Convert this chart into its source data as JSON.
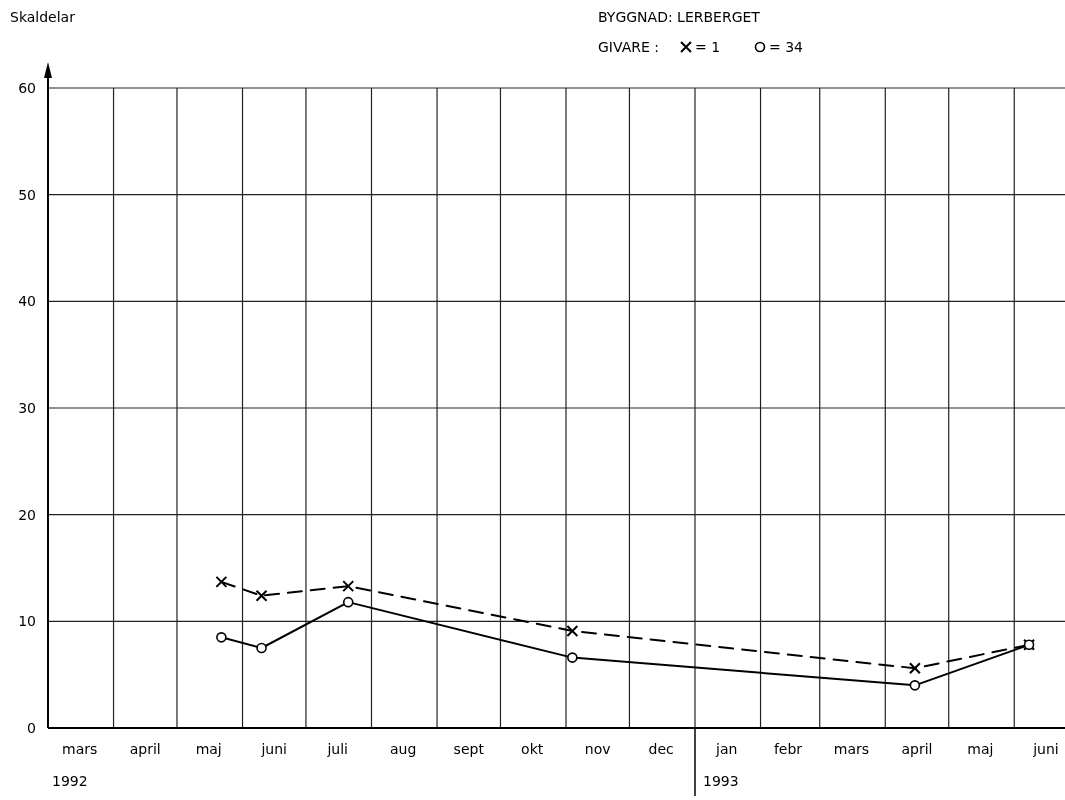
{
  "chart_data": {
    "type": "line",
    "title": "BYGGNAD: LERBERGET",
    "ylabel": "Skaldelar",
    "legend_title": "GIVARE :",
    "legend": "top right",
    "grid": true,
    "xlim": [
      "1992-03-01",
      "1993-06-25"
    ],
    "xticks": [
      {
        "value": "1992-04-01",
        "label": null
      },
      {
        "value": "1992-05-01",
        "label": null
      },
      {
        "value": "1992-06-01",
        "label": null
      },
      {
        "value": "1992-07-01",
        "label": null
      },
      {
        "value": "1992-08-01",
        "label": null
      },
      {
        "value": "1992-09-01",
        "label": null
      },
      {
        "value": "1992-10-01",
        "label": null
      },
      {
        "value": "1992-11-01",
        "label": null
      },
      {
        "value": "1992-12-01",
        "label": null
      },
      {
        "value": "1993-01-01",
        "label": null
      },
      {
        "value": "1993-02-01",
        "label": null
      },
      {
        "value": "1993-03-01",
        "label": null
      },
      {
        "value": "1993-04-01",
        "label": null
      },
      {
        "value": "1993-05-01",
        "label": null
      },
      {
        "value": "1993-06-01",
        "label": null
      },
      {
        "value": "1992-03-16",
        "label": "mars"
      },
      {
        "value": "1992-04-16",
        "label": "april"
      },
      {
        "value": "1992-05-16",
        "label": "maj"
      },
      {
        "value": "1992-06-16",
        "label": "juni"
      },
      {
        "value": "1992-07-16",
        "label": "juli"
      },
      {
        "value": "1992-08-16",
        "label": "aug"
      },
      {
        "value": "1992-09-16",
        "label": "sept"
      },
      {
        "value": "1992-10-16",
        "label": "okt"
      },
      {
        "value": "1992-11-16",
        "label": "nov"
      },
      {
        "value": "1992-12-16",
        "label": "dec"
      },
      {
        "value": "1993-01-16",
        "label": "jan"
      },
      {
        "value": "1993-02-14",
        "label": "febr"
      },
      {
        "value": "1993-03-16",
        "label": "mars"
      },
      {
        "value": "1993-04-16",
        "label": "april"
      },
      {
        "value": "1993-05-16",
        "label": "maj"
      },
      {
        "value": "1993-06-16",
        "label": "juni"
      }
    ],
    "ylim": [
      0,
      60
    ],
    "yticks": [
      0,
      10,
      20,
      30,
      40,
      50,
      60
    ],
    "annotations": [
      "1992",
      "1993"
    ],
    "x": [
      "1992-05-22",
      "1992-06-10",
      "1992-07-21",
      "1992-11-04",
      "1993-04-15",
      "1993-06-08"
    ],
    "series": [
      {
        "name": "= 1",
        "color": "#000000",
        "marker": "cross",
        "line_style": "dashed",
        "values": [
          13.7,
          12.4,
          13.3,
          9.1,
          5.6,
          7.8
        ]
      },
      {
        "name": "= 34",
        "color": "#000000",
        "marker": "circle",
        "line_style": "solid",
        "values": [
          8.5,
          7.5,
          11.8,
          6.6,
          4.0,
          7.8
        ]
      }
    ]
  }
}
